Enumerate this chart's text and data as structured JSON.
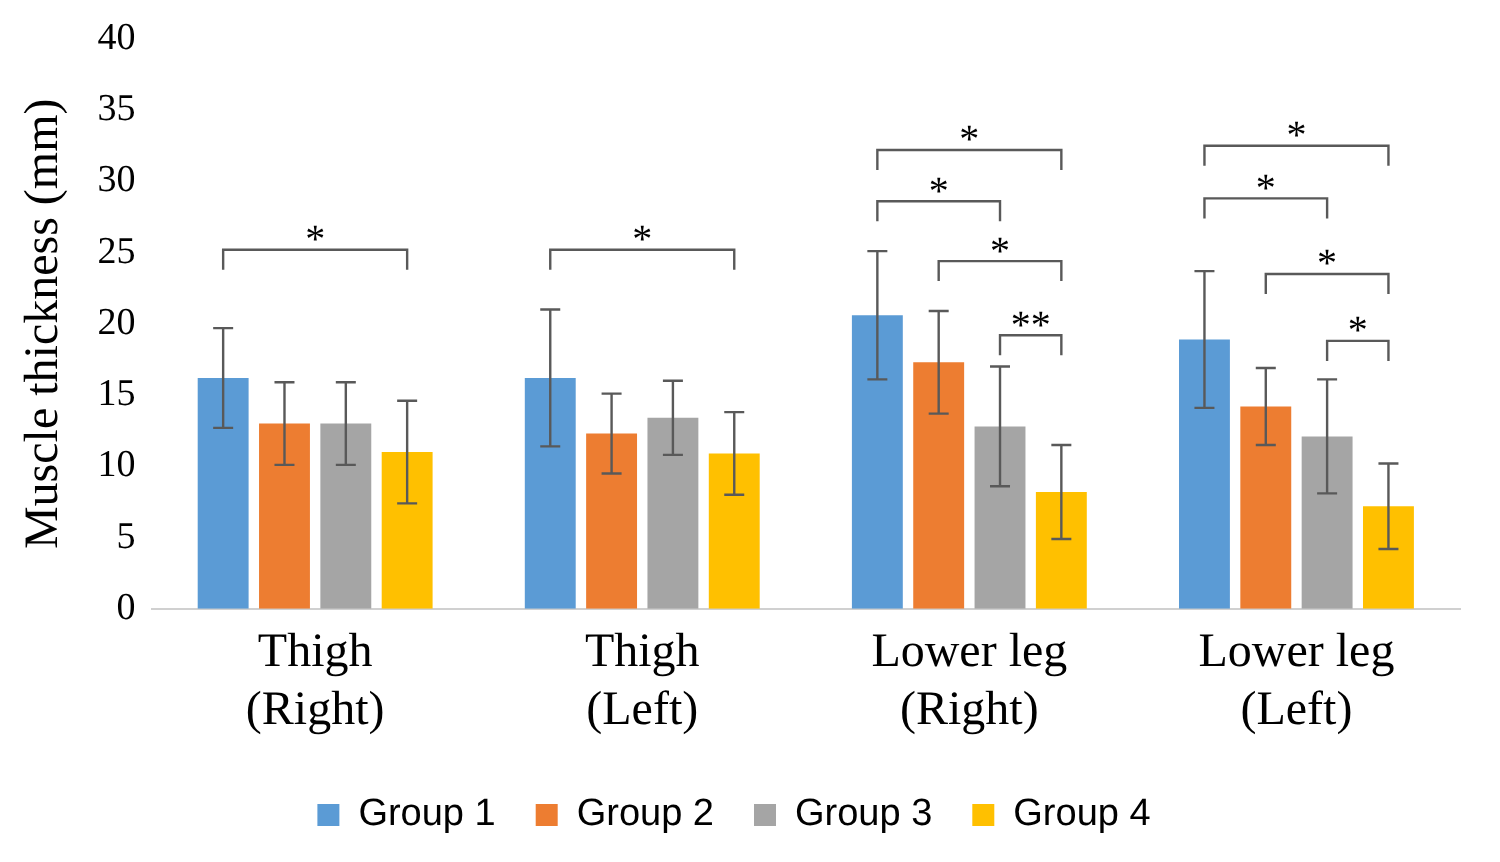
{
  "chart_data": {
    "type": "bar",
    "ylabel": "Muscle thickness (mm)",
    "categories": [
      "Thigh\n(Right)",
      "Thigh\n(Left)",
      "Lower leg\n(Right)",
      "Lower leg\n(Left)"
    ],
    "series": [
      {
        "name": "Group 1",
        "color": "#5b9bd5",
        "values": [
          16.2,
          16.2,
          20.6,
          18.9
        ],
        "errors": [
          3.5,
          4.8,
          4.5,
          4.8
        ]
      },
      {
        "name": "Group 2",
        "color": "#ed7d31",
        "values": [
          13.0,
          12.3,
          17.3,
          14.2
        ],
        "errors": [
          2.9,
          2.8,
          3.6,
          2.7
        ]
      },
      {
        "name": "Group 3",
        "color": "#a5a5a5",
        "values": [
          13.0,
          13.4,
          12.8,
          12.1
        ],
        "errors": [
          2.9,
          2.6,
          4.2,
          4.0
        ]
      },
      {
        "name": "Group 4",
        "color": "#ffc000",
        "values": [
          11.0,
          10.9,
          8.2,
          7.2
        ],
        "errors": [
          3.6,
          2.9,
          3.3,
          3.0
        ]
      }
    ],
    "ylim": [
      0,
      40
    ],
    "yticks": [
      0,
      5,
      10,
      15,
      20,
      25,
      30,
      35,
      40
    ],
    "grid": false,
    "legend": "bottom",
    "annotations": [
      "*",
      "*",
      "*",
      "*",
      "*",
      "**",
      "*",
      "*",
      "*",
      "*"
    ]
  }
}
